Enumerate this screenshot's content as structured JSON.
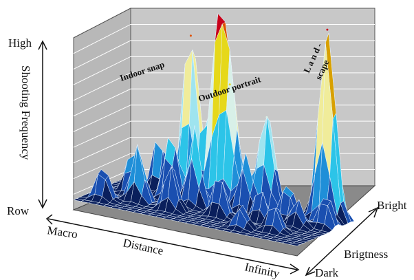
{
  "chart_data": {
    "type": "surface3d",
    "z_axis": {
      "label": "Shooting Frequency",
      "top": "High",
      "bottom": "Row"
    },
    "x_axis": {
      "label": "Distance",
      "start": "Macro",
      "end": "Infinity"
    },
    "y_axis": {
      "label": "Brigtness",
      "start": "Dark",
      "end": "Bright"
    },
    "annotations": {
      "indoor": "Indoor snap",
      "outdoor": "Outdoor portrait",
      "land1": "L a n d -",
      "land2": "scape"
    },
    "peaks": [
      {
        "name": "Indoor snap",
        "x": 0.32,
        "y": 0.8,
        "z": 0.85
      },
      {
        "name": "Indoor snap",
        "x": 0.44,
        "y": 0.82,
        "z": 0.92
      },
      {
        "name": "Outdoor portrait",
        "x": 0.5,
        "y": 0.78,
        "z": 0.65
      },
      {
        "name": "Outdoor portrait",
        "x": 0.66,
        "y": 0.8,
        "z": 0.52
      },
      {
        "name": "Landscape",
        "x": 0.9,
        "y": 0.92,
        "z": 1.0
      }
    ],
    "colors": [
      "#0a1f5c",
      "#1a4fb0",
      "#1f8fd8",
      "#2cc4e8",
      "#9fe4ef",
      "#d8f0e8",
      "#f0ec9a",
      "#e6d81a",
      "#d8a000",
      "#e05000",
      "#c8001a"
    ],
    "grid": true
  }
}
